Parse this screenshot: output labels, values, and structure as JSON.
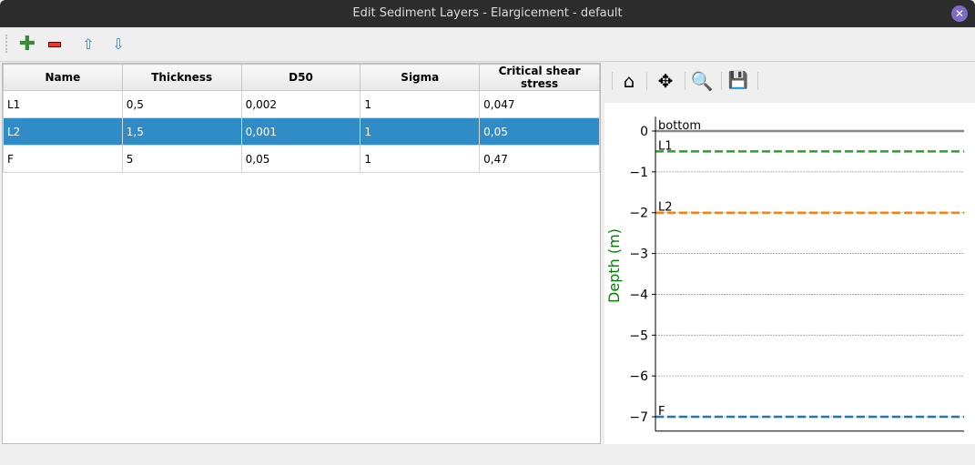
{
  "window": {
    "title": "Edit Sediment Layers - Elargicement - default",
    "close_icon": "close-icon"
  },
  "toolbar": {
    "icons": [
      "add-icon",
      "remove-icon",
      "move-up-icon",
      "move-down-icon"
    ]
  },
  "table": {
    "columns": [
      "Name",
      "Thickness",
      "D50",
      "Sigma",
      "Critical shear stress"
    ],
    "rows": [
      [
        "L1",
        "0,5",
        "0,002",
        "1",
        "0,047"
      ],
      [
        "L2",
        "1,5",
        "0,001",
        "1",
        "0,05"
      ],
      [
        "F",
        "5",
        "0,05",
        "1",
        "0,47"
      ]
    ],
    "selected_row": 1
  },
  "plot_toolbar": {
    "icons": [
      "home-icon",
      "pan-icon",
      "zoom-icon",
      "save-icon"
    ]
  },
  "chart_data": {
    "type": "line",
    "ylabel": "Depth (m)",
    "ylim": [
      -7.35,
      0.35
    ],
    "yticks": [
      "0",
      "−1",
      "−2",
      "−3",
      "−4",
      "−5",
      "−6",
      "−7"
    ],
    "ytick_values": [
      0,
      -1,
      -2,
      -3,
      -4,
      -5,
      -6,
      -7
    ],
    "grid": "horizontal dotted",
    "series": [
      {
        "name": "bottom",
        "y": 0,
        "style": "solid",
        "color": "#888888"
      },
      {
        "name": "L1",
        "y": -0.5,
        "style": "dashed",
        "color": "#2ca02c"
      },
      {
        "name": "L2",
        "y": -2,
        "style": "dashed",
        "color": "#ff7f0e"
      },
      {
        "name": "F",
        "y": -7,
        "style": "dashed",
        "color": "#1f77b4"
      }
    ],
    "ylabel_color": "#008000"
  }
}
